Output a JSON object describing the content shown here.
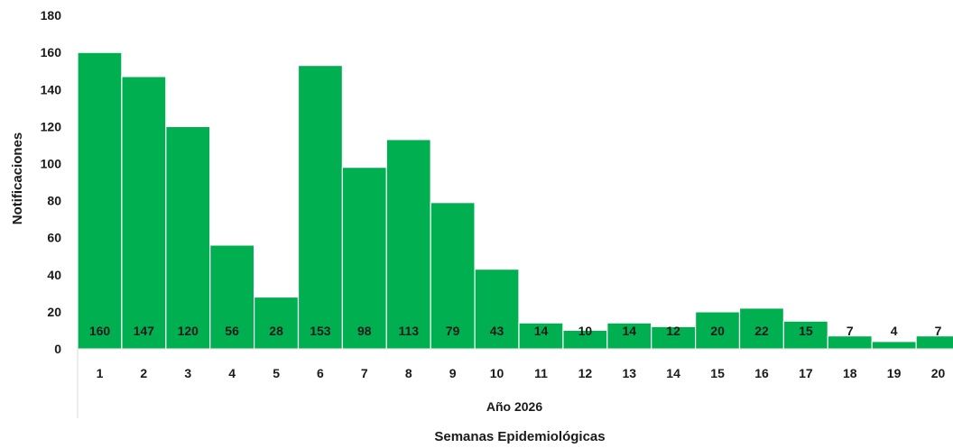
{
  "chart_data": {
    "type": "bar",
    "categories": [
      "1",
      "2",
      "3",
      "4",
      "5",
      "6",
      "7",
      "8",
      "9",
      "10",
      "11",
      "12",
      "13",
      "14",
      "15",
      "16",
      "17",
      "18",
      "19",
      "20"
    ],
    "values": [
      160,
      147,
      120,
      56,
      28,
      153,
      98,
      113,
      79,
      43,
      14,
      10,
      14,
      12,
      20,
      22,
      15,
      7,
      4,
      7
    ],
    "data_labels": [
      "160",
      "147",
      "120",
      "56",
      "28",
      "153",
      "98",
      "113",
      "79",
      "43",
      "14",
      "10",
      "14",
      "12",
      "20",
      "22",
      "15",
      "7",
      "4",
      "7"
    ],
    "yticks": [
      "0",
      "20",
      "40",
      "60",
      "80",
      "100",
      "120",
      "140",
      "160",
      "180"
    ],
    "ylim": [
      0,
      180
    ],
    "ylabel": "Notificaciones",
    "xlabel": "Semanas Epidemiológicas",
    "group_label": "Año 2026",
    "bar_color": "#00B050",
    "grid": false,
    "legend": "none"
  }
}
